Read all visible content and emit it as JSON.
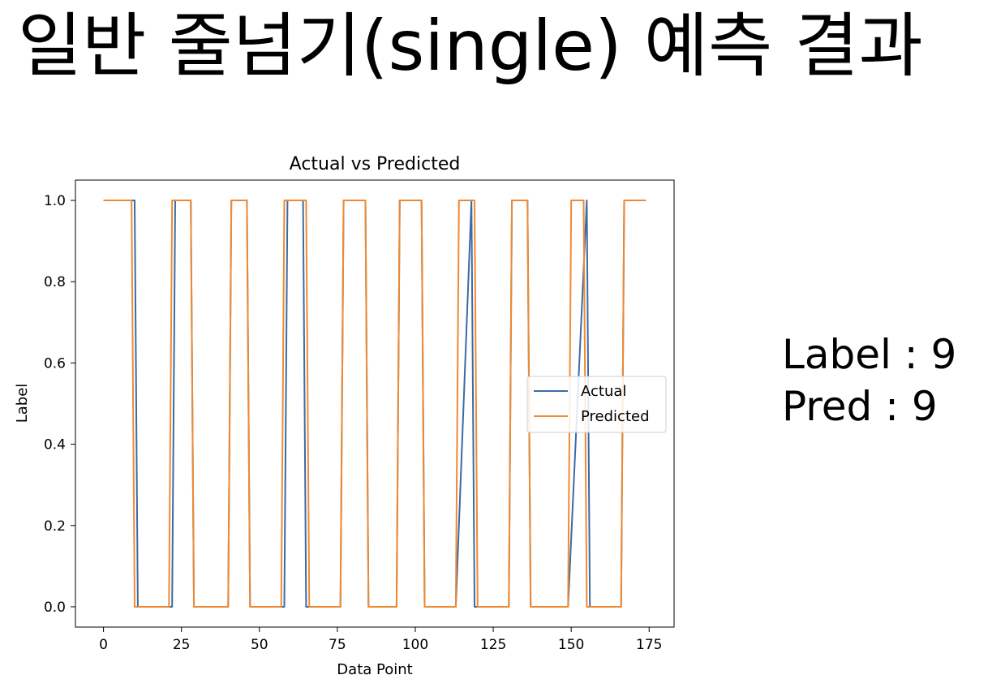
{
  "slide": {
    "title": "일반 줄넘기(single) 예측 결과",
    "label_text": "Label : 9",
    "pred_text": "Pred : 9"
  },
  "chart_data": {
    "type": "line",
    "title": "Actual vs Predicted",
    "xlabel": "Data Point",
    "ylabel": "Label",
    "xlim": [
      -9,
      183
    ],
    "ylim": [
      -0.05,
      1.05
    ],
    "xticks": [
      0,
      25,
      50,
      75,
      100,
      125,
      150,
      175
    ],
    "yticks": [
      0.0,
      0.2,
      0.4,
      0.6,
      0.8,
      1.0
    ],
    "ytick_labels": [
      "0.0",
      "0.2",
      "0.4",
      "0.6",
      "0.8",
      "1.0"
    ],
    "grid": false,
    "legend_position": "center-right",
    "series": [
      {
        "name": "Actual",
        "color": "#3b6ba5",
        "x": [
          0,
          10,
          11,
          22,
          23,
          28,
          29,
          40,
          41,
          46,
          47,
          58,
          59,
          64,
          65,
          76,
          77,
          84,
          85,
          94,
          95,
          102,
          103,
          113,
          118,
          119,
          130,
          131,
          136,
          137,
          149,
          155,
          156,
          166,
          167,
          174
        ],
        "y": [
          1,
          1,
          0,
          0,
          1,
          1,
          0,
          0,
          1,
          1,
          0,
          0,
          1,
          1,
          0,
          0,
          1,
          1,
          0,
          0,
          1,
          1,
          0,
          0,
          1,
          0,
          0,
          1,
          1,
          0,
          0,
          1,
          0,
          0,
          1,
          1
        ]
      },
      {
        "name": "Predicted",
        "color": "#ef8a33",
        "x": [
          0,
          9,
          10,
          21,
          22,
          28,
          29,
          40,
          41,
          46,
          47,
          57,
          58,
          65,
          66,
          76,
          77,
          84,
          85,
          94,
          95,
          102,
          103,
          113,
          114,
          119,
          120,
          130,
          131,
          136,
          137,
          149,
          150,
          154,
          155,
          166,
          167,
          174
        ],
        "y": [
          1,
          1,
          0,
          0,
          1,
          1,
          0,
          0,
          1,
          1,
          0,
          0,
          1,
          1,
          0,
          0,
          1,
          1,
          0,
          0,
          1,
          1,
          0,
          0,
          1,
          1,
          0,
          0,
          1,
          1,
          0,
          0,
          1,
          1,
          0,
          0,
          1,
          1
        ]
      }
    ]
  }
}
